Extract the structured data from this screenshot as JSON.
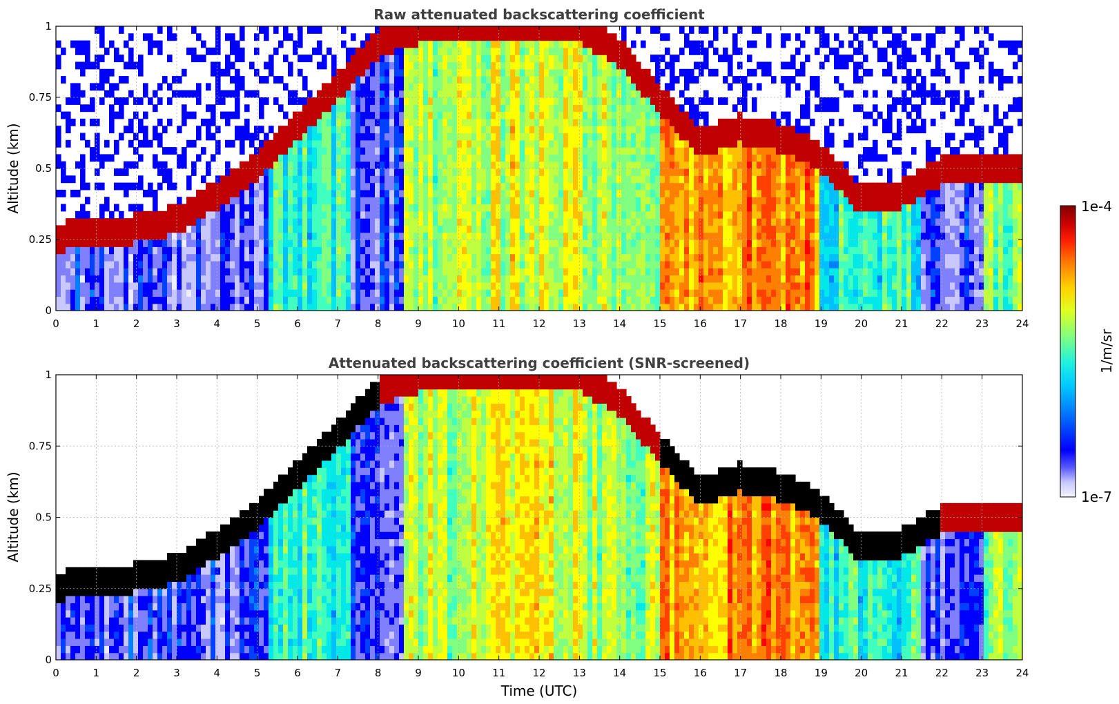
{
  "chart_data": [
    {
      "type": "heatmap",
      "title": "Raw attenuated backscattering coefficient",
      "ylabel": "Altitude (km)",
      "xlabel": "",
      "xlim": [
        0,
        24
      ],
      "ylim": [
        0,
        1
      ],
      "x_ticks": [
        "0",
        "1",
        "2",
        "3",
        "4",
        "5",
        "6",
        "7",
        "8",
        "9",
        "10",
        "11",
        "12",
        "13",
        "14",
        "15",
        "16",
        "17",
        "18",
        "19",
        "20",
        "21",
        "22",
        "23",
        "24"
      ],
      "y_ticks": [
        "0",
        "0.25",
        "0.5",
        "0.75",
        "1"
      ],
      "y_tick_values": [
        0,
        0.25,
        0.5,
        0.75,
        1
      ],
      "grid": true,
      "screened": false,
      "boundary_layer_top_km": {
        "time_utc": [
          0,
          1,
          2,
          3,
          4,
          5,
          6,
          7,
          8,
          9,
          10,
          11,
          12,
          13,
          14,
          15,
          16,
          17,
          18,
          19,
          20,
          21,
          22
        ],
        "altitude_km": [
          0.27,
          0.28,
          0.3,
          0.33,
          0.42,
          0.52,
          0.66,
          0.8,
          0.95,
          1.0,
          1.0,
          1.0,
          1.0,
          1.0,
          0.92,
          0.75,
          0.6,
          0.65,
          0.62,
          0.55,
          0.4,
          0.42,
          0.5
        ]
      },
      "colormap": "jet",
      "colorbar": {
        "min": "1e-7",
        "max": "1e-4",
        "unit": "1/m/sr",
        "scale": "log"
      }
    },
    {
      "type": "heatmap",
      "title": "Attenuated backscattering coefficient (SNR-screened)",
      "ylabel": "Altitude (km)",
      "xlabel": "Time (UTC)",
      "xlim": [
        0,
        24
      ],
      "ylim": [
        0,
        1
      ],
      "x_ticks": [
        "0",
        "1",
        "2",
        "3",
        "4",
        "5",
        "6",
        "7",
        "8",
        "9",
        "10",
        "11",
        "12",
        "13",
        "14",
        "15",
        "16",
        "17",
        "18",
        "19",
        "20",
        "21",
        "22",
        "23",
        "24"
      ],
      "y_ticks": [
        "0",
        "0.25",
        "0.5",
        "0.75",
        "1"
      ],
      "y_tick_values": [
        0,
        0.25,
        0.5,
        0.75,
        1
      ],
      "grid": true,
      "screened": true,
      "colormap": "jet",
      "colorbar": {
        "min": "1e-7",
        "max": "1e-4",
        "unit": "1/m/sr",
        "scale": "log"
      }
    }
  ],
  "colorbar": {
    "max_label": "1e-4",
    "min_label": "1e-7",
    "unit_label": "1/m/sr",
    "colors": [
      "#eeeeff",
      "#c8c8ff",
      "#8080ff",
      "#0000ff",
      "#0040ff",
      "#0080ff",
      "#00c0ff",
      "#00e8e8",
      "#40ffbf",
      "#80ff80",
      "#c0ff40",
      "#ffff00",
      "#ffc000",
      "#ff8000",
      "#ff4000",
      "#ff0000",
      "#c00000",
      "#800000"
    ]
  }
}
